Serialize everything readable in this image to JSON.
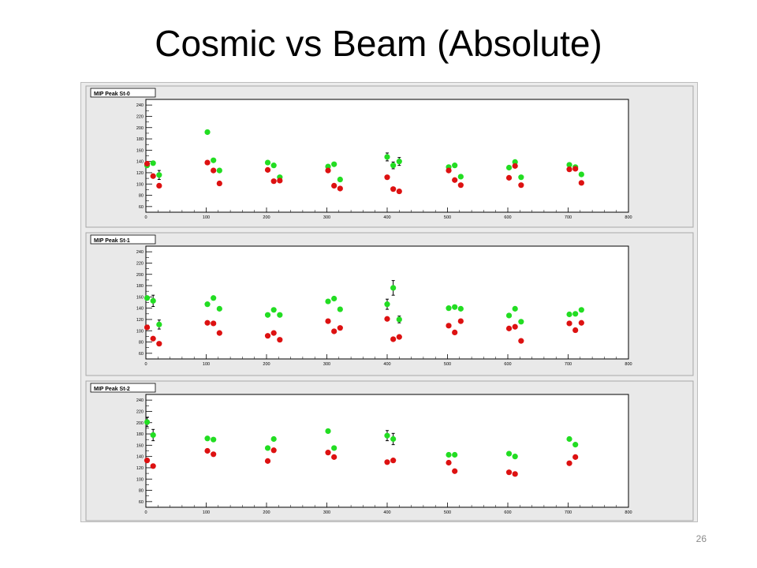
{
  "slide": {
    "title": "Cosmic vs Beam (Absolute)",
    "page_number": "26"
  },
  "colors": {
    "beam": "#22dd22",
    "cosmic": "#dd1111",
    "frame_bg": "#e9e9e9",
    "pad_bg": "#ffffff"
  },
  "chart_data": [
    {
      "type": "scatter",
      "title": "MIP Peak St-0",
      "xlim": [
        0,
        800
      ],
      "ylim": [
        50,
        250
      ],
      "xticks": [
        "0",
        "100",
        "200",
        "300",
        "400",
        "500",
        "600",
        "700",
        "800"
      ],
      "yticks": [
        "60",
        "80",
        "100",
        "120",
        "140",
        "160",
        "180",
        "200",
        "220",
        "240"
      ],
      "series": [
        {
          "color": "#22dd22",
          "points": [
            [
              2,
              133
            ],
            [
              12,
              137
            ],
            [
              22,
              116
            ],
            [
              102,
              192
            ],
            [
              112,
              142
            ],
            [
              122,
              124
            ],
            [
              202,
              138
            ],
            [
              212,
              133
            ],
            [
              222,
              112
            ],
            [
              302,
              131
            ],
            [
              312,
              135
            ],
            [
              322,
              108
            ],
            [
              400,
              148
            ],
            [
              410,
              133
            ],
            [
              420,
              140
            ],
            [
              502,
              130
            ],
            [
              512,
              133
            ],
            [
              522,
              113
            ],
            [
              602,
              129
            ],
            [
              612,
              139
            ],
            [
              622,
              112
            ],
            [
              702,
              134
            ],
            [
              712,
              130
            ],
            [
              722,
              117
            ]
          ]
        },
        {
          "color": "#dd1111",
          "points": [
            [
              2,
              136
            ],
            [
              12,
              114
            ],
            [
              22,
              97
            ],
            [
              102,
              138
            ],
            [
              112,
              124
            ],
            [
              122,
              101
            ],
            [
              202,
              125
            ],
            [
              212,
              105
            ],
            [
              222,
              106
            ],
            [
              302,
              124
            ],
            [
              312,
              97
            ],
            [
              322,
              92
            ],
            [
              400,
              112
            ],
            [
              410,
              91
            ],
            [
              420,
              87
            ],
            [
              502,
              124
            ],
            [
              512,
              107
            ],
            [
              522,
              98
            ],
            [
              602,
              111
            ],
            [
              612,
              132
            ],
            [
              622,
              98
            ],
            [
              702,
              126
            ],
            [
              712,
              127
            ],
            [
              722,
              102
            ]
          ]
        }
      ],
      "error_bars": [
        [
          22,
          116,
          8
        ],
        [
          400,
          148,
          7
        ],
        [
          410,
          133,
          6
        ],
        [
          420,
          140,
          7
        ]
      ]
    },
    {
      "type": "scatter",
      "title": "MIP Peak St-1",
      "xlim": [
        0,
        800
      ],
      "ylim": [
        50,
        250
      ],
      "xticks": [
        "0",
        "100",
        "200",
        "300",
        "400",
        "500",
        "600",
        "700",
        "800"
      ],
      "yticks": [
        "60",
        "80",
        "100",
        "120",
        "140",
        "160",
        "180",
        "200",
        "220",
        "240"
      ],
      "series": [
        {
          "color": "#22dd22",
          "points": [
            [
              2,
              158
            ],
            [
              12,
              153
            ],
            [
              22,
              111
            ],
            [
              102,
              147
            ],
            [
              112,
              158
            ],
            [
              122,
              139
            ],
            [
              202,
              128
            ],
            [
              212,
              137
            ],
            [
              222,
              128
            ],
            [
              302,
              152
            ],
            [
              312,
              157
            ],
            [
              322,
              138
            ],
            [
              400,
              147
            ],
            [
              410,
              176
            ],
            [
              420,
              120
            ],
            [
              502,
              140
            ],
            [
              512,
              142
            ],
            [
              522,
              139
            ],
            [
              602,
              127
            ],
            [
              612,
              139
            ],
            [
              622,
              116
            ],
            [
              702,
              129
            ],
            [
              712,
              130
            ],
            [
              722,
              137
            ]
          ]
        },
        {
          "color": "#dd1111",
          "points": [
            [
              2,
              106
            ],
            [
              12,
              86
            ],
            [
              22,
              77
            ],
            [
              102,
              114
            ],
            [
              112,
              113
            ],
            [
              122,
              96
            ],
            [
              202,
              91
            ],
            [
              212,
              96
            ],
            [
              222,
              84
            ],
            [
              302,
              117
            ],
            [
              312,
              99
            ],
            [
              322,
              105
            ],
            [
              400,
              121
            ],
            [
              410,
              85
            ],
            [
              420,
              89
            ],
            [
              502,
              109
            ],
            [
              512,
              97
            ],
            [
              522,
              117
            ],
            [
              602,
              104
            ],
            [
              612,
              107
            ],
            [
              622,
              82
            ],
            [
              702,
              113
            ],
            [
              712,
              101
            ],
            [
              722,
              114
            ]
          ]
        }
      ],
      "error_bars": [
        [
          12,
          153,
          10
        ],
        [
          22,
          111,
          8
        ],
        [
          400,
          147,
          9
        ],
        [
          410,
          176,
          13
        ],
        [
          420,
          120,
          6
        ]
      ]
    },
    {
      "type": "scatter",
      "title": "MIP Peak St-2",
      "xlim": [
        0,
        800
      ],
      "ylim": [
        50,
        250
      ],
      "xticks": [
        "0",
        "100",
        "200",
        "300",
        "400",
        "500",
        "600",
        "700",
        "800"
      ],
      "yticks": [
        "60",
        "80",
        "100",
        "120",
        "140",
        "160",
        "180",
        "200",
        "220",
        "240"
      ],
      "series": [
        {
          "color": "#22dd22",
          "points": [
            [
              2,
              201
            ],
            [
              12,
              178
            ],
            [
              102,
              172
            ],
            [
              112,
              170
            ],
            [
              202,
              155
            ],
            [
              212,
              171
            ],
            [
              302,
              185
            ],
            [
              312,
              155
            ],
            [
              400,
              177
            ],
            [
              410,
              171
            ],
            [
              502,
              143
            ],
            [
              512,
              143
            ],
            [
              602,
              145
            ],
            [
              612,
              140
            ],
            [
              702,
              171
            ],
            [
              712,
              161
            ]
          ]
        },
        {
          "color": "#dd1111",
          "points": [
            [
              2,
              133
            ],
            [
              12,
              123
            ],
            [
              102,
              150
            ],
            [
              112,
              144
            ],
            [
              202,
              132
            ],
            [
              212,
              151
            ],
            [
              302,
              147
            ],
            [
              312,
              139
            ],
            [
              400,
              130
            ],
            [
              410,
              133
            ],
            [
              502,
              129
            ],
            [
              512,
              114
            ],
            [
              602,
              112
            ],
            [
              612,
              109
            ],
            [
              702,
              128
            ],
            [
              712,
              139
            ]
          ]
        }
      ],
      "error_bars": [
        [
          2,
          201,
          8
        ],
        [
          12,
          178,
          10
        ],
        [
          400,
          177,
          9
        ],
        [
          410,
          171,
          10
        ]
      ]
    }
  ]
}
